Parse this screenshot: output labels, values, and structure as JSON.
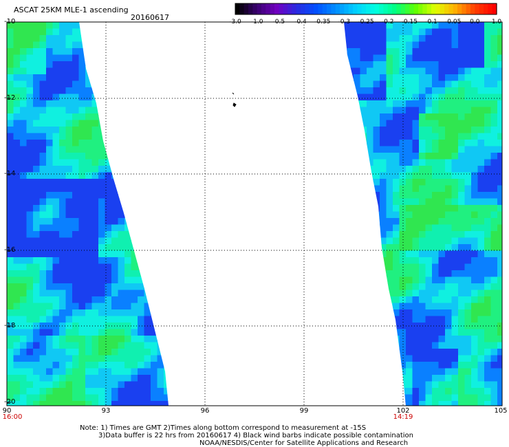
{
  "header": {
    "title": "ASCAT 25KM MLE-1 ascending",
    "date": "20160617"
  },
  "colorbar": {
    "labels": [
      "-3.0",
      "-1.0",
      "-0.5",
      "-0.4",
      "-0.35",
      "-0.3",
      "-0.25",
      "-0.2",
      "-0.15",
      "-0.1",
      "-0.05",
      "0.0",
      "1.0"
    ],
    "colors": [
      "#000000",
      "#3a0070",
      "#7000c0",
      "#2a2ae0",
      "#0050ff",
      "#0090ff",
      "#00d0ff",
      "#00ffe0",
      "#00ff80",
      "#60ff00",
      "#e0ff00",
      "#ffb000",
      "#ff4000",
      "#ff0000"
    ]
  },
  "map": {
    "lat_labels": [
      "-10",
      "-12",
      "-14",
      "-16",
      "-18",
      "-20"
    ],
    "lon_labels": [
      "90",
      "93",
      "96",
      "99",
      "102",
      "105"
    ],
    "times": [
      "16:00",
      "14:19"
    ]
  },
  "notes": {
    "line1": "Note: 1) Times are GMT 2)Times along bottom correspond to measurement at -15S",
    "line2": "3)Data buffer is 22 hrs from 20160617 4) Black wind barbs indicate possible contamination",
    "line3": "NOAA/NESDIS/Center for Satellite Applications and Research"
  }
}
